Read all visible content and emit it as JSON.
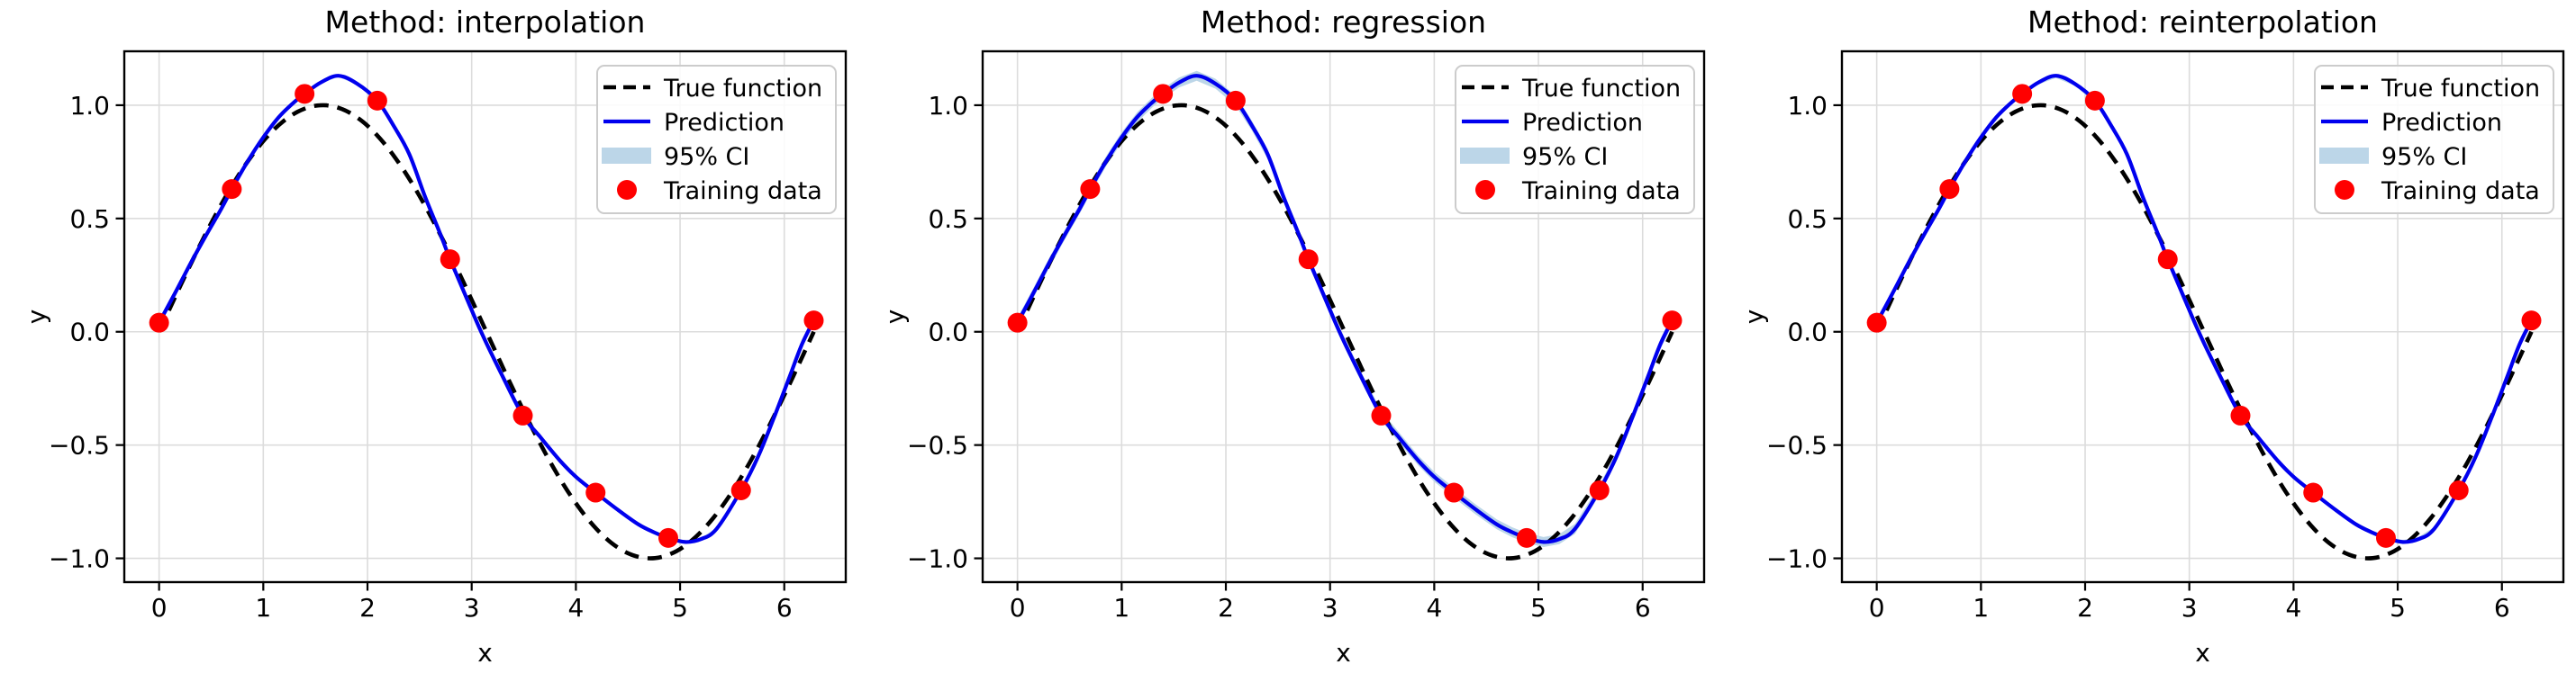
{
  "figure": {
    "background": "#ffffff",
    "panel_count": 3
  },
  "chart_data": [
    {
      "type": "line",
      "title": "Method: interpolation",
      "xlabel": "x",
      "ylabel": "y",
      "xlim": [
        -0.334,
        6.59
      ],
      "ylim": [
        -1.105,
        1.238
      ],
      "grid": true,
      "xticks": {
        "values": [
          0,
          1,
          2,
          3,
          4,
          5,
          6
        ],
        "labels": [
          "0",
          "1",
          "2",
          "3",
          "4",
          "5",
          "6"
        ]
      },
      "yticks": {
        "values": [
          -1.0,
          -0.5,
          0.0,
          0.5,
          1.0
        ],
        "labels": [
          "−1.0",
          "−0.5",
          "0.0",
          "0.5",
          "1.0"
        ]
      },
      "legend": {
        "position": "upper right",
        "entries": [
          {
            "label": "True function",
            "type": "line-dashed",
            "color": "#000000"
          },
          {
            "label": "Prediction",
            "type": "line",
            "color": "#0000ee"
          },
          {
            "label": "95% CI",
            "type": "patch",
            "color": "#bcd6e8"
          },
          {
            "label": "Training data",
            "type": "marker",
            "color": "#ff0000"
          }
        ]
      },
      "series": [
        {
          "name": "True function",
          "kind": "dashed-line",
          "color": "#000000",
          "formula": "sin(x)",
          "x_start": 0,
          "x_end": 6.2832
        },
        {
          "name": "Prediction",
          "kind": "line",
          "color": "#0000ee",
          "x": [
            0,
            0.15,
            0.3,
            0.45,
            0.6,
            0.698,
            0.85,
            1,
            1.15,
            1.3,
            1.396,
            1.55,
            1.72,
            1.9,
            2.094,
            2.25,
            2.4,
            2.55,
            2.7,
            2.793,
            2.95,
            3.1,
            3.3,
            3.491,
            3.65,
            3.85,
            4,
            4.189,
            4.4,
            4.6,
            4.75,
            4.887,
            5.05,
            5.2,
            5.35,
            5.585,
            5.75,
            5.9,
            6.05,
            6.17,
            6.283
          ],
          "y": [
            0.04,
            0.168,
            0.3,
            0.425,
            0.545,
            0.63,
            0.752,
            0.858,
            0.948,
            1.015,
            1.05,
            1.1,
            1.13,
            1.095,
            1.02,
            0.91,
            0.785,
            0.6,
            0.43,
            0.32,
            0.15,
            -0.01,
            -0.2,
            -0.37,
            -0.46,
            -0.57,
            -0.64,
            -0.71,
            -0.785,
            -0.85,
            -0.885,
            -0.91,
            -0.928,
            -0.915,
            -0.87,
            -0.7,
            -0.55,
            -0.38,
            -0.2,
            -0.055,
            0.05
          ]
        },
        {
          "name": "95% CI",
          "kind": "band",
          "color": "#bcd6e8",
          "around": "Prediction",
          "halfwidth": 0.005
        },
        {
          "name": "Training data",
          "kind": "scatter",
          "color": "#ff0000",
          "x": [
            0,
            0.698,
            1.396,
            2.094,
            2.793,
            3.491,
            4.189,
            4.887,
            5.585,
            6.283
          ],
          "y": [
            0.04,
            0.63,
            1.05,
            1.02,
            0.32,
            -0.37,
            -0.71,
            -0.91,
            -0.7,
            0.05
          ]
        }
      ]
    },
    {
      "type": "line",
      "title": "Method: regression",
      "xlabel": "x",
      "ylabel": "y",
      "xlim": [
        -0.334,
        6.59
      ],
      "ylim": [
        -1.105,
        1.238
      ],
      "grid": true,
      "xticks": {
        "values": [
          0,
          1,
          2,
          3,
          4,
          5,
          6
        ],
        "labels": [
          "0",
          "1",
          "2",
          "3",
          "4",
          "5",
          "6"
        ]
      },
      "yticks": {
        "values": [
          -1.0,
          -0.5,
          0.0,
          0.5,
          1.0
        ],
        "labels": [
          "−1.0",
          "−0.5",
          "0.0",
          "0.5",
          "1.0"
        ]
      },
      "legend": {
        "position": "upper right",
        "entries": [
          {
            "label": "True function",
            "type": "line-dashed",
            "color": "#000000"
          },
          {
            "label": "Prediction",
            "type": "line",
            "color": "#0000ee"
          },
          {
            "label": "95% CI",
            "type": "patch",
            "color": "#bcd6e8"
          },
          {
            "label": "Training data",
            "type": "marker",
            "color": "#ff0000"
          }
        ]
      },
      "series": [
        {
          "name": "True function",
          "kind": "dashed-line",
          "color": "#000000",
          "formula": "sin(x)",
          "x_start": 0,
          "x_end": 6.2832
        },
        {
          "name": "Prediction",
          "kind": "line",
          "color": "#0000ee",
          "x": [
            0,
            0.15,
            0.3,
            0.45,
            0.6,
            0.698,
            0.85,
            1,
            1.15,
            1.3,
            1.396,
            1.55,
            1.72,
            1.9,
            2.094,
            2.25,
            2.4,
            2.55,
            2.7,
            2.793,
            2.95,
            3.1,
            3.3,
            3.491,
            3.65,
            3.85,
            4,
            4.189,
            4.4,
            4.6,
            4.75,
            4.887,
            5.05,
            5.2,
            5.35,
            5.585,
            5.75,
            5.9,
            6.05,
            6.17,
            6.283
          ],
          "y": [
            0.04,
            0.168,
            0.3,
            0.425,
            0.545,
            0.63,
            0.752,
            0.858,
            0.948,
            1.015,
            1.05,
            1.1,
            1.13,
            1.095,
            1.02,
            0.91,
            0.785,
            0.6,
            0.43,
            0.32,
            0.15,
            -0.01,
            -0.2,
            -0.37,
            -0.46,
            -0.57,
            -0.64,
            -0.71,
            -0.785,
            -0.85,
            -0.885,
            -0.91,
            -0.928,
            -0.915,
            -0.87,
            -0.7,
            -0.55,
            -0.38,
            -0.2,
            -0.055,
            0.05
          ]
        },
        {
          "name": "95% CI",
          "kind": "band",
          "color": "#bcd6e8",
          "around": "Prediction",
          "halfwidth": 0.022
        },
        {
          "name": "Training data",
          "kind": "scatter",
          "color": "#ff0000",
          "x": [
            0,
            0.698,
            1.396,
            2.094,
            2.793,
            3.491,
            4.189,
            4.887,
            5.585,
            6.283
          ],
          "y": [
            0.04,
            0.63,
            1.05,
            1.02,
            0.32,
            -0.37,
            -0.71,
            -0.91,
            -0.7,
            0.05
          ]
        }
      ]
    },
    {
      "type": "line",
      "title": "Method: reinterpolation",
      "xlabel": "x",
      "ylabel": "y",
      "xlim": [
        -0.334,
        6.59
      ],
      "ylim": [
        -1.105,
        1.238
      ],
      "grid": true,
      "xticks": {
        "values": [
          0,
          1,
          2,
          3,
          4,
          5,
          6
        ],
        "labels": [
          "0",
          "1",
          "2",
          "3",
          "4",
          "5",
          "6"
        ]
      },
      "yticks": {
        "values": [
          -1.0,
          -0.5,
          0.0,
          0.5,
          1.0
        ],
        "labels": [
          "−1.0",
          "−0.5",
          "0.0",
          "0.5",
          "1.0"
        ]
      },
      "legend": {
        "position": "upper right",
        "entries": [
          {
            "label": "True function",
            "type": "line-dashed",
            "color": "#000000"
          },
          {
            "label": "Prediction",
            "type": "line",
            "color": "#0000ee"
          },
          {
            "label": "95% CI",
            "type": "patch",
            "color": "#bcd6e8"
          },
          {
            "label": "Training data",
            "type": "marker",
            "color": "#ff0000"
          }
        ]
      },
      "series": [
        {
          "name": "True function",
          "kind": "dashed-line",
          "color": "#000000",
          "formula": "sin(x)",
          "x_start": 0,
          "x_end": 6.2832
        },
        {
          "name": "Prediction",
          "kind": "line",
          "color": "#0000ee",
          "x": [
            0,
            0.15,
            0.3,
            0.45,
            0.6,
            0.698,
            0.85,
            1,
            1.15,
            1.3,
            1.396,
            1.55,
            1.72,
            1.9,
            2.094,
            2.25,
            2.4,
            2.55,
            2.7,
            2.793,
            2.95,
            3.1,
            3.3,
            3.491,
            3.65,
            3.85,
            4,
            4.189,
            4.4,
            4.6,
            4.75,
            4.887,
            5.05,
            5.2,
            5.35,
            5.585,
            5.75,
            5.9,
            6.05,
            6.17,
            6.283
          ],
          "y": [
            0.04,
            0.168,
            0.3,
            0.425,
            0.545,
            0.63,
            0.752,
            0.858,
            0.948,
            1.015,
            1.05,
            1.1,
            1.13,
            1.095,
            1.02,
            0.91,
            0.785,
            0.6,
            0.43,
            0.32,
            0.15,
            -0.01,
            -0.2,
            -0.37,
            -0.46,
            -0.57,
            -0.64,
            -0.71,
            -0.785,
            -0.85,
            -0.885,
            -0.91,
            -0.928,
            -0.915,
            -0.87,
            -0.7,
            -0.55,
            -0.38,
            -0.2,
            -0.055,
            0.05
          ]
        },
        {
          "name": "95% CI",
          "kind": "band",
          "color": "#bcd6e8",
          "around": "Prediction",
          "halfwidth": 0.009
        },
        {
          "name": "Training data",
          "kind": "scatter",
          "color": "#ff0000",
          "x": [
            0,
            0.698,
            1.396,
            2.094,
            2.793,
            3.491,
            4.189,
            4.887,
            5.585,
            6.283
          ],
          "y": [
            0.04,
            0.63,
            1.05,
            1.02,
            0.32,
            -0.37,
            -0.71,
            -0.91,
            -0.7,
            0.05
          ]
        }
      ]
    }
  ],
  "style_colors": {
    "grid": "#dcdcdc",
    "spine": "#000000",
    "legend_border": "#cccccc",
    "legend_background": "#ffffff"
  }
}
